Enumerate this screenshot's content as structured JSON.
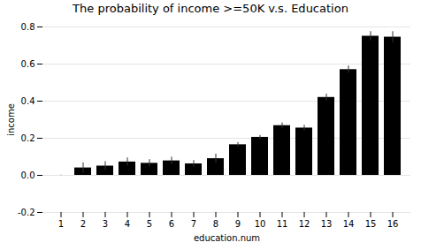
{
  "chart_data": {
    "type": "bar",
    "title": "The probability of income >=50K v.s. Education",
    "xlabel": "education.num",
    "ylabel": "income",
    "categories": [
      1,
      2,
      3,
      4,
      5,
      6,
      7,
      8,
      9,
      10,
      11,
      12,
      13,
      14,
      15,
      16
    ],
    "values": [
      0.0,
      0.04,
      0.05,
      0.072,
      0.065,
      0.078,
      0.062,
      0.09,
      0.165,
      0.205,
      0.268,
      0.255,
      0.42,
      0.57,
      0.75,
      0.745
    ],
    "errors": [
      0.001,
      0.028,
      0.024,
      0.022,
      0.02,
      0.02,
      0.018,
      0.025,
      0.012,
      0.01,
      0.015,
      0.015,
      0.018,
      0.02,
      0.025,
      0.03
    ],
    "ylim": [
      -0.2,
      0.8
    ],
    "yticks": [
      -0.2,
      {
        "value": 0,
        "label": "0.0"
      },
      0.2,
      0.4,
      0.6,
      0.8
    ],
    "grid": true
  }
}
